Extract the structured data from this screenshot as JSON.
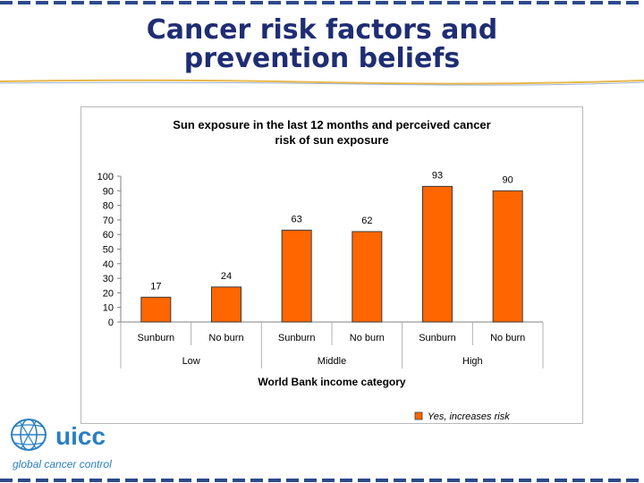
{
  "slide": {
    "title_line1": "Cancer risk factors and",
    "title_line2": "prevention beliefs"
  },
  "logo": {
    "name": "uicc",
    "tagline": "global cancer control",
    "icon": "globe-icon"
  },
  "colors": {
    "title": "#1f2d73",
    "bar": "#ff6600",
    "accent_line": "#e8b74a",
    "border": "#2d4a8a"
  },
  "chart_data": {
    "type": "bar",
    "title_line1": "Sun exposure in the last 12 months and perceived cancer",
    "title_line2": "risk of sun exposure",
    "categories": [
      "Sunburn",
      "No burn",
      "Sunburn",
      "No burn",
      "Sunburn",
      "No burn"
    ],
    "groups": [
      "Low",
      "Middle",
      "High"
    ],
    "series": [
      {
        "name": "Yes, increases  risk",
        "values": [
          17,
          24,
          63,
          62,
          93,
          90
        ]
      }
    ],
    "xlabel": "World Bank income category",
    "ylabel": "",
    "ylim": [
      0,
      100
    ],
    "yticks": [
      "0",
      "10",
      "20",
      "30",
      "40",
      "50",
      "60",
      "70",
      "80",
      "90",
      "100"
    ],
    "legend_position": "bottom-right",
    "grid": false
  }
}
